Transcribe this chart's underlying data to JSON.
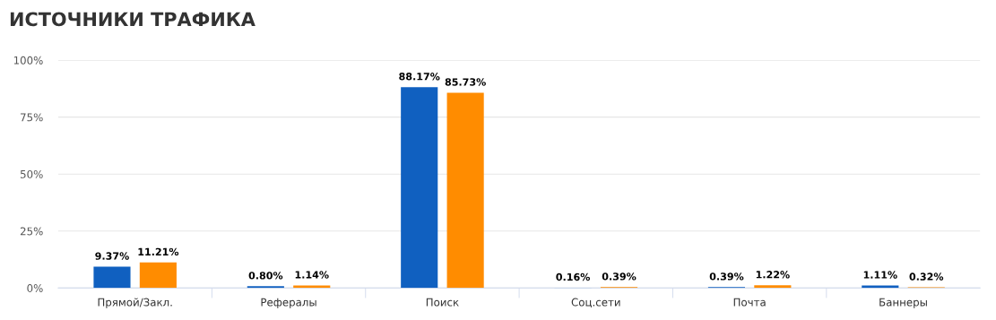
{
  "chart_data": {
    "type": "bar",
    "title": "ИСТОЧНИКИ ТРАФИКА",
    "categories": [
      "Прямой/Закл.",
      "Рефералы",
      "Поиск",
      "Соц.сети",
      "Почта",
      "Баннеры"
    ],
    "series": [
      {
        "color": "#1060c0",
        "values": [
          9.37,
          0.8,
          88.17,
          0.16,
          0.39,
          1.11
        ],
        "value_labels": [
          "9.37%",
          "0.80%",
          "88.17%",
          "0.16%",
          "0.39%",
          "1.11%"
        ]
      },
      {
        "color": "#ff8c00",
        "values": [
          11.21,
          1.14,
          85.73,
          0.39,
          1.22,
          0.32
        ],
        "value_labels": [
          "11.21%",
          "1.14%",
          "85.73%",
          "0.39%",
          "1.22%",
          "0.32%"
        ]
      }
    ],
    "ylim": [
      0,
      100
    ],
    "yticks": [
      {
        "value": 0,
        "label": "0%"
      },
      {
        "value": 25,
        "label": "25%"
      },
      {
        "value": 50,
        "label": "50%"
      },
      {
        "value": 75,
        "label": "75%"
      },
      {
        "value": 100,
        "label": "100%"
      }
    ],
    "grid": "y",
    "legend": false
  }
}
